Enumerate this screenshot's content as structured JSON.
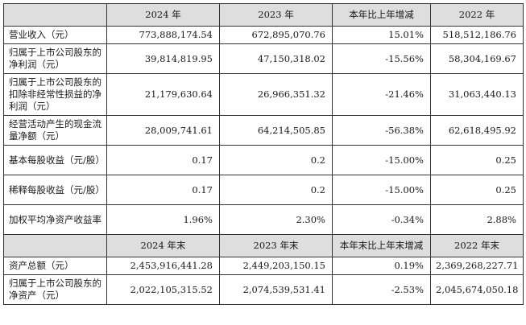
{
  "table1": {
    "headers": [
      "",
      "2024 年",
      "2023 年",
      "本年比上年增减",
      "2022 年"
    ],
    "rows": [
      {
        "label": "营业收入（元）",
        "values": [
          "773,888,174.54",
          "672,895,070.76",
          "15.01%",
          "518,512,186.76"
        ]
      },
      {
        "label": "归属于上市公司股东的净利润（元）",
        "values": [
          "39,814,819.95",
          "47,150,318.02",
          "-15.56%",
          "58,304,169.67"
        ]
      },
      {
        "label": "归属于上市公司股东的扣除非经常性损益的净利润（元）",
        "values": [
          "21,179,630.64",
          "26,966,351.32",
          "-21.46%",
          "31,063,440.13"
        ]
      },
      {
        "label": "经营活动产生的现金流量净额（元）",
        "values": [
          "28,009,741.61",
          "64,214,505.85",
          "-56.38%",
          "62,618,495.92"
        ]
      },
      {
        "label": "基本每股收益（元/股）",
        "values": [
          "0.17",
          "0.2",
          "-15.00%",
          "0.25"
        ]
      },
      {
        "label": "稀释每股收益（元/股）",
        "values": [
          "0.17",
          "0.2",
          "-15.00%",
          "0.25"
        ]
      },
      {
        "label": "加权平均净资产收益率",
        "values": [
          "1.96%",
          "2.30%",
          "-0.34%",
          "2.88%"
        ]
      }
    ]
  },
  "table2": {
    "headers": [
      "",
      "2024 年末",
      "2023 年末",
      "本年末比上年末增减",
      "2022 年末"
    ],
    "rows": [
      {
        "label": "资产总额（元）",
        "values": [
          "2,453,916,441.28",
          "2,449,203,150.15",
          "0.19%",
          "2,369,268,227.71"
        ]
      },
      {
        "label": "归属于上市公司股东的净资产（元）",
        "values": [
          "2,022,105,315.52",
          "2,074,539,531.41",
          "-2.53%",
          "2,045,674,050.18"
        ]
      }
    ]
  }
}
